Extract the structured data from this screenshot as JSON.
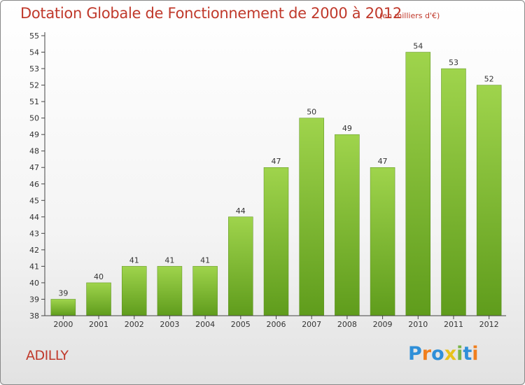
{
  "title": "Dotation Globale de Fonctionnement de 2000 à 2012",
  "subtitle": "(en milliers d'€)",
  "commune": "ADILLY",
  "logo": {
    "letters": [
      {
        "ch": "P",
        "color": "#2f8fd8"
      },
      {
        "ch": "r",
        "color": "#f07f1e"
      },
      {
        "ch": "o",
        "color": "#2f8fd8"
      },
      {
        "ch": "x",
        "color": "#e8c21a"
      },
      {
        "ch": "i",
        "color": "#7ab648"
      },
      {
        "ch": "t",
        "color": "#2f8fd8"
      },
      {
        "ch": "i",
        "color": "#f07f1e"
      }
    ]
  },
  "colors": {
    "bar_top": "#9fd44c",
    "bar_bottom": "#5f9c1c",
    "title": "#c0392b",
    "axis": "#444444"
  },
  "chart_data": {
    "type": "bar",
    "categories": [
      "2000",
      "2001",
      "2002",
      "2003",
      "2004",
      "2005",
      "2006",
      "2007",
      "2008",
      "2009",
      "2010",
      "2011",
      "2012"
    ],
    "values": [
      39,
      40,
      41,
      41,
      41,
      44,
      47,
      50,
      49,
      47,
      54,
      53,
      52
    ],
    "title": "Dotation Globale de Fonctionnement de 2000 à 2012",
    "subtitle": "(en milliers d'€)",
    "ylim": [
      38,
      55
    ],
    "yticks": [
      38,
      39,
      40,
      41,
      42,
      43,
      44,
      45,
      46,
      47,
      48,
      49,
      50,
      51,
      52,
      53,
      54,
      55
    ],
    "grid": false,
    "data_labels": true
  }
}
